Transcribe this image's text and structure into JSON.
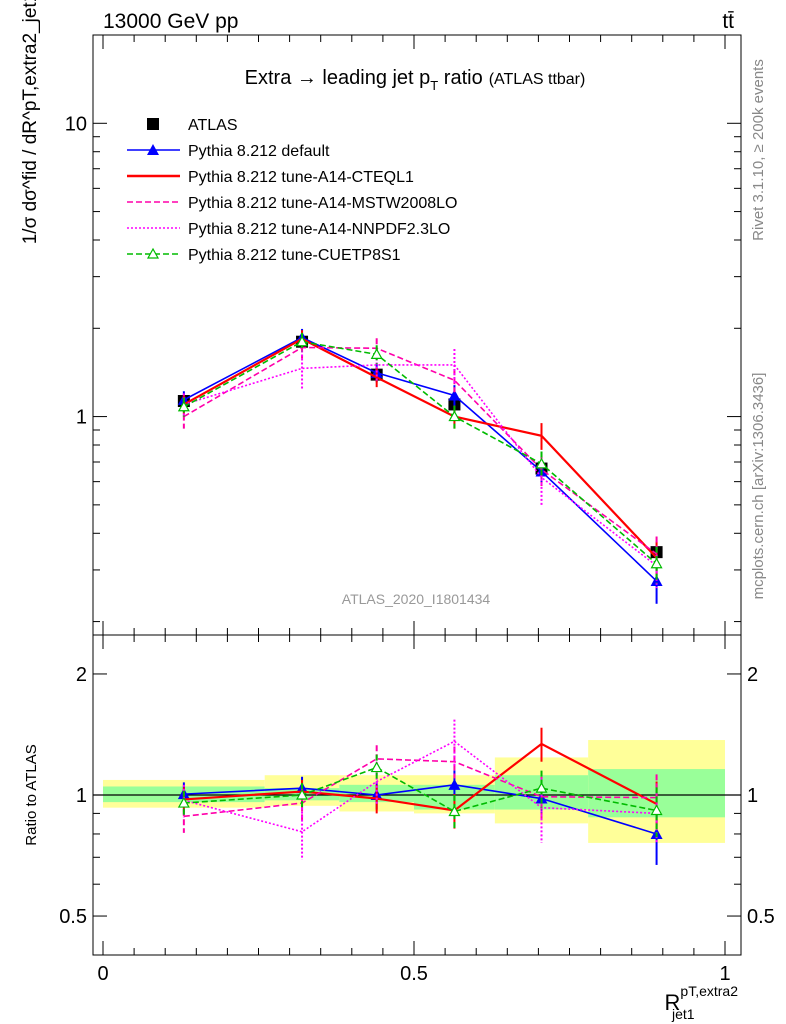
{
  "header": {
    "left": "13000 GeV pp",
    "right": "tt̄"
  },
  "side_labels": {
    "rivet": "Rivet 3.1.10, ≥ 200k events",
    "mcplots": "mcplots.cern.ch [arXiv:1306.3436]"
  },
  "chart_data": [
    {
      "type": "line",
      "panel": "main",
      "title": "Extra → leading jet p_T ratio (ATLAS ttbar)",
      "title_main": "Extra → leading jet p",
      "title_sub": "T",
      "title_rest": " ratio",
      "title_small": "(ATLAS ttbar)",
      "analysis_id": "ATLAS_2020_I1801434",
      "ylabel": "1/σ dσ^fid / dR^pT,extra2_jet1",
      "yscale": "log",
      "ylim": [
        0.18,
        20
      ],
      "xlim": [
        0,
        1
      ],
      "yticks": [
        1,
        10
      ],
      "ytick_labels": [
        "1",
        "10"
      ],
      "legend_position": "top-left",
      "bins": [
        [
          0.0,
          0.26
        ],
        [
          0.26,
          0.38
        ],
        [
          0.38,
          0.5
        ],
        [
          0.5,
          0.63
        ],
        [
          0.63,
          0.78
        ],
        [
          0.78,
          1.0
        ]
      ],
      "x": [
        0.13,
        0.32,
        0.44,
        0.565,
        0.705,
        0.89
      ],
      "series": [
        {
          "name": "ATLAS",
          "color": "#000000",
          "style": "data",
          "marker": "square",
          "values": [
            1.13,
            1.8,
            1.39,
            1.1,
            0.665,
            0.345
          ],
          "errors": [
            0.07,
            0.11,
            0.09,
            0.08,
            0.05,
            0.03
          ]
        },
        {
          "name": "Pythia 8.212 default",
          "color": "#0000ff",
          "style": "solid",
          "marker": "triangle",
          "values": [
            1.14,
            1.86,
            1.41,
            1.18,
            0.65,
            0.275
          ],
          "errors": [
            0.08,
            0.13,
            0.1,
            0.1,
            0.07,
            0.045
          ]
        },
        {
          "name": "Pythia 8.212 tune-A14-CTEQL1",
          "color": "#ff0000",
          "style": "solid",
          "marker": "none",
          "values": [
            1.1,
            1.84,
            1.36,
            1.0,
            0.86,
            0.33
          ],
          "errors": [
            0.08,
            0.13,
            0.1,
            0.09,
            0.09,
            0.045
          ]
        },
        {
          "name": "Pythia 8.212 tune-A14-MSTW2008LO",
          "color": "#ff00aa",
          "style": "dashed",
          "marker": "none",
          "values": [
            1.0,
            1.72,
            1.71,
            1.33,
            0.66,
            0.34
          ],
          "errors": [
            0.09,
            0.14,
            0.14,
            0.12,
            0.08,
            0.05
          ]
        },
        {
          "name": "Pythia 8.212 tune-A14-NNPDF2.3LO",
          "color": "#ff00ff",
          "style": "dotted",
          "marker": "none",
          "values": [
            1.1,
            1.46,
            1.5,
            1.5,
            0.62,
            0.31
          ],
          "errors": [
            0.1,
            0.22,
            0.18,
            0.2,
            0.12,
            0.05
          ]
        },
        {
          "name": "Pythia 8.212 tune-CUETP8S1",
          "color": "#00bb00",
          "style": "dashed",
          "marker": "open-triangle",
          "values": [
            1.08,
            1.8,
            1.63,
            1.0,
            0.69,
            0.315
          ],
          "errors": [
            0.08,
            0.13,
            0.12,
            0.09,
            0.07,
            0.045
          ]
        }
      ]
    },
    {
      "type": "line",
      "panel": "ratio",
      "ylabel": "Ratio to ATLAS",
      "xlabel": "R_jet1^pT,extra2",
      "xlabel_main": "R",
      "xlabel_sup": "pT,extra2",
      "xlabel_sub": "jet1",
      "yscale": "log",
      "ylim": [
        0.4,
        2.5
      ],
      "xlim": [
        0,
        1
      ],
      "yticks": [
        0.5,
        1,
        2
      ],
      "ytick_labels": [
        "0.5",
        "1",
        "2"
      ],
      "xticks": [
        0,
        0.5,
        1
      ],
      "xtick_labels": [
        "0",
        "0.5",
        "1"
      ],
      "bins": [
        [
          0.0,
          0.26
        ],
        [
          0.26,
          0.38
        ],
        [
          0.38,
          0.5
        ],
        [
          0.5,
          0.63
        ],
        [
          0.63,
          0.78
        ],
        [
          0.78,
          1.0
        ]
      ],
      "x": [
        0.13,
        0.32,
        0.44,
        0.565,
        0.705,
        0.89
      ],
      "band_stat": [
        [
          0.96,
          1.05
        ],
        [
          0.97,
          1.04
        ],
        [
          0.96,
          1.06
        ],
        [
          0.92,
          1.06
        ],
        [
          0.92,
          1.12
        ],
        [
          0.88,
          1.16
        ]
      ],
      "band_total": [
        [
          0.93,
          1.09
        ],
        [
          0.94,
          1.12
        ],
        [
          0.91,
          1.12
        ],
        [
          0.9,
          1.12
        ],
        [
          0.85,
          1.24
        ],
        [
          0.76,
          1.37
        ]
      ],
      "band_colors": {
        "stat": "#99ff99",
        "total": "#ffff99"
      },
      "series": [
        {
          "name": "Pythia 8.212 default",
          "color": "#0000ff",
          "style": "solid",
          "marker": "triangle",
          "values": [
            1.005,
            1.04,
            1.0,
            1.06,
            0.98,
            0.8
          ],
          "errors": [
            0.07,
            0.07,
            0.08,
            0.09,
            0.11,
            0.13
          ]
        },
        {
          "name": "Pythia 8.212 tune-A14-CTEQL1",
          "color": "#ff0000",
          "style": "solid",
          "marker": "none",
          "values": [
            0.975,
            1.02,
            0.98,
            0.915,
            1.34,
            0.95
          ],
          "errors": [
            0.07,
            0.07,
            0.08,
            0.09,
            0.13,
            0.13
          ]
        },
        {
          "name": "Pythia 8.212 tune-A14-MSTW2008LO",
          "color": "#ff00aa",
          "style": "dashed",
          "marker": "none",
          "values": [
            0.885,
            0.955,
            1.23,
            1.21,
            0.99,
            0.985
          ],
          "errors": [
            0.08,
            0.09,
            0.1,
            0.11,
            0.12,
            0.14
          ]
        },
        {
          "name": "Pythia 8.212 tune-A14-NNPDF2.3LO",
          "color": "#ff00ff",
          "style": "dotted",
          "marker": "none",
          "values": [
            0.97,
            0.81,
            1.08,
            1.36,
            0.93,
            0.9
          ],
          "errors": [
            0.09,
            0.12,
            0.13,
            0.18,
            0.17,
            0.14
          ]
        },
        {
          "name": "Pythia 8.212 tune-CUETP8S1",
          "color": "#00bb00",
          "style": "dashed",
          "marker": "open-triangle",
          "values": [
            0.955,
            1.0,
            1.17,
            0.91,
            1.04,
            0.915
          ],
          "errors": [
            0.07,
            0.07,
            0.09,
            0.09,
            0.11,
            0.13
          ]
        }
      ]
    }
  ]
}
